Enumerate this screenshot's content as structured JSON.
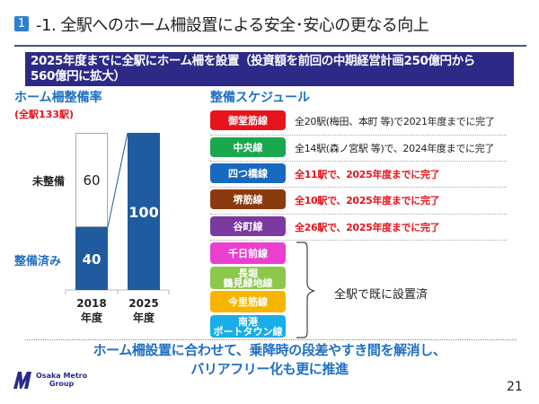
{
  "slide": {
    "section_number": "1",
    "title": "-1. 全駅へのホーム柵設置による安全･安心の更なる向上",
    "banner_line1": "2025年度までに全駅にホーム柵を設置（投資額を前回の中期経営計画250億円から",
    "banner_line2": "560億円に拡大）",
    "page_number": "21"
  },
  "rate": {
    "heading": "ホーム柵整備率",
    "subheading": "(全駅133駅)",
    "label_unfinished": "未整備",
    "label_finished": "整備済み"
  },
  "chart_data": {
    "type": "bar",
    "stacked": true,
    "categories": [
      "2018\n年度",
      "2025\n年度"
    ],
    "category_labels": [
      {
        "year": "2018",
        "suffix": "年度"
      },
      {
        "year": "2025",
        "suffix": "年度"
      }
    ],
    "series": [
      {
        "name": "整備済み",
        "values": [
          40,
          100
        ],
        "color": "#1f5b9e"
      },
      {
        "name": "未整備",
        "values": [
          60,
          0
        ],
        "color": "#ffffff"
      }
    ],
    "value_labels": {
      "2018_done": "40",
      "2018_todo": "60",
      "2025_done": "100"
    },
    "ylim": [
      0,
      100
    ]
  },
  "schedule": {
    "heading": "整備スケジュール",
    "lines": [
      {
        "name": "御堂筋線",
        "color": "#e8141c",
        "text": "全20駅(梅田、本町 等)で2021年度までに完了",
        "highlight": false
      },
      {
        "name": "中央線",
        "color": "#1aa84f",
        "text": "全14駅(森ノ宮駅 等)で、2024年度までに完了",
        "highlight": false
      },
      {
        "name": "四つ橋線",
        "color": "#1769c0",
        "text": "全11駅で、2025年度までに完了",
        "highlight": true
      },
      {
        "name": "堺筋線",
        "color": "#8b3a0e",
        "text": "全10駅で、2025年度までに完了",
        "highlight": true
      },
      {
        "name": "谷町線",
        "color": "#7a3aa0",
        "text": "全26駅で、2025年度までに完了",
        "highlight": true
      }
    ],
    "completed_lines": [
      {
        "name": "千日前線",
        "color": "#ec3fd0"
      },
      {
        "name": "長堀\n鶴見緑地線",
        "color": "#8cc84b"
      },
      {
        "name": "今里筋線",
        "color": "#f7b500"
      },
      {
        "name": "南港\nポートタウン線",
        "color": "#19aee8"
      }
    ],
    "completed_note": "全駅で既に設置済"
  },
  "footer": {
    "line1": "ホーム柵設置に合わせて、乗降時の段差やすき間を解消し、",
    "line2": "バリアフリー化も更に推進"
  },
  "logo": {
    "text_line1": "Osaka Metro",
    "text_line2": "Group"
  }
}
